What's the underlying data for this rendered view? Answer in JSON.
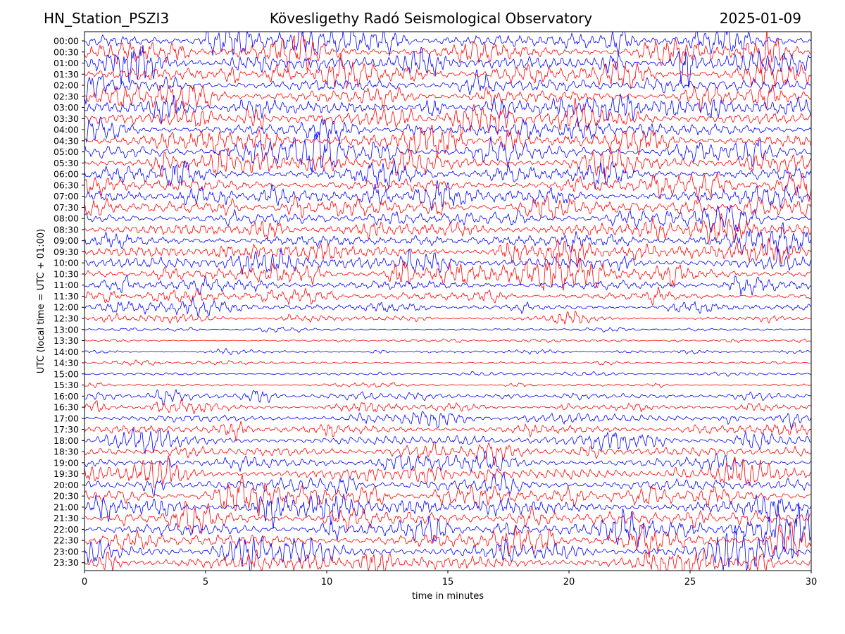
{
  "header": {
    "station": "HN_Station_PSZI3",
    "observatory": "Kövesligethy Radó Seismological Observatory",
    "date": "2025-01-09"
  },
  "chart_data": {
    "type": "line",
    "chart_kind": "helicorder",
    "xlabel": "time in minutes",
    "ylabel": "UTC (local time = UTC + 01:00)",
    "xlim": [
      0,
      30
    ],
    "xticks": [
      0,
      5,
      10,
      15,
      20,
      25,
      30
    ],
    "row_labels": [
      "00:00",
      "00:30",
      "01:00",
      "01:30",
      "02:00",
      "02:30",
      "03:00",
      "03:30",
      "04:00",
      "04:30",
      "05:00",
      "05:30",
      "06:00",
      "06:30",
      "07:00",
      "07:30",
      "08:00",
      "08:30",
      "09:00",
      "09:30",
      "10:00",
      "10:30",
      "11:00",
      "11:30",
      "12:00",
      "12:30",
      "13:00",
      "13:30",
      "14:00",
      "14:30",
      "15:00",
      "15:30",
      "16:00",
      "16:30",
      "17:00",
      "17:30",
      "18:00",
      "18:30",
      "19:00",
      "19:30",
      "20:00",
      "20:30",
      "21:00",
      "21:30",
      "22:00",
      "22:30",
      "23:00",
      "23:30"
    ],
    "trace_colors": [
      "#0000ff",
      "#ff0000"
    ],
    "relative_amplitude": [
      0.8,
      0.85,
      0.85,
      0.85,
      0.8,
      0.75,
      0.75,
      0.7,
      0.75,
      0.8,
      0.85,
      0.85,
      0.85,
      0.8,
      0.75,
      0.75,
      0.75,
      0.75,
      0.7,
      0.7,
      0.75,
      0.75,
      0.6,
      0.5,
      0.35,
      0.25,
      0.15,
      0.12,
      0.15,
      0.15,
      0.15,
      0.15,
      0.3,
      0.35,
      0.5,
      0.55,
      0.6,
      0.6,
      0.65,
      0.7,
      0.75,
      0.75,
      0.8,
      0.8,
      0.85,
      0.85,
      0.85,
      0.85
    ],
    "grid": false
  }
}
